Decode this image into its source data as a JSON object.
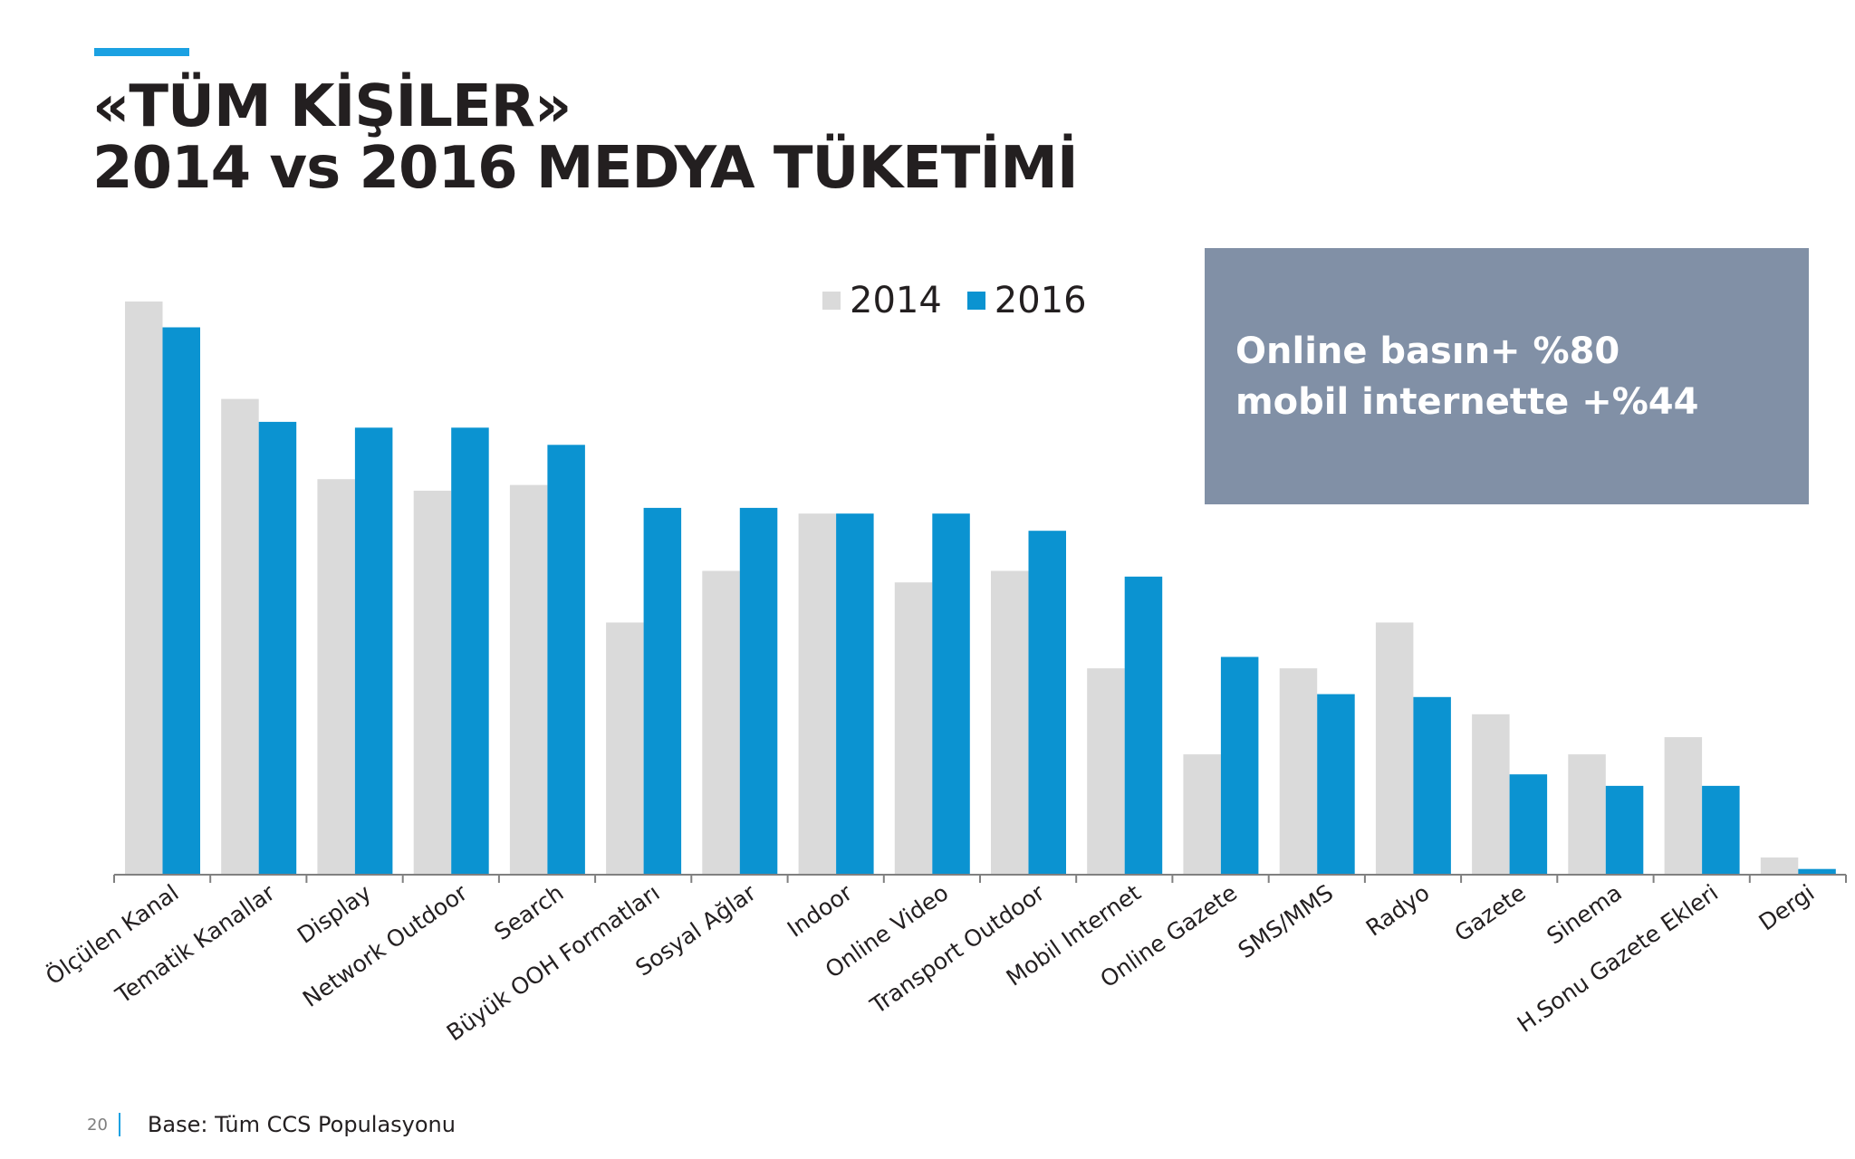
{
  "header": {
    "title_line1": "«TÜM KİŞİLER»",
    "title_line2": "2014 vs 2016 MEDYA TÜKETİMİ"
  },
  "legend": {
    "items": [
      {
        "label": "2014",
        "color": "#dadada"
      },
      {
        "label": "2016",
        "color": "#0b93d1"
      }
    ]
  },
  "callout": {
    "line1": "Online basın+ %80",
    "line2": "mobil internette +%44",
    "background": "#8190a6"
  },
  "footer": {
    "page_number": "20",
    "base_note": "Base: Tüm CCS Populasyonu"
  },
  "chart_data": {
    "type": "bar",
    "categories": [
      "Ölçülen Kanal",
      "Tematik Kanallar",
      "Display",
      "Network Outdoor",
      "Search",
      "Büyük OOH Formatları",
      "Sosyal Ağlar",
      "Indoor",
      "Online Video",
      "Transport Outdoor",
      "Mobil Internet",
      "Online Gazete",
      "SMS/MMS",
      "Radyo",
      "Gazete",
      "Sinema",
      "H.Sonu Gazete Ekleri",
      "Dergi"
    ],
    "series": [
      {
        "name": "2014",
        "color": "#dadada",
        "values": [
          100,
          83,
          69,
          67,
          68,
          44,
          53,
          63,
          51,
          53,
          36,
          21,
          36,
          44,
          28,
          21,
          24,
          3
        ]
      },
      {
        "name": "2016",
        "color": "#0b93d1",
        "values": [
          95.5,
          79,
          78,
          78,
          75,
          64,
          64,
          63,
          63,
          60,
          52,
          38,
          31.5,
          31,
          17.5,
          15.5,
          15.5,
          1
        ]
      }
    ],
    "ylim": [
      0,
      100
    ],
    "grid": false,
    "legend": "top-center"
  }
}
